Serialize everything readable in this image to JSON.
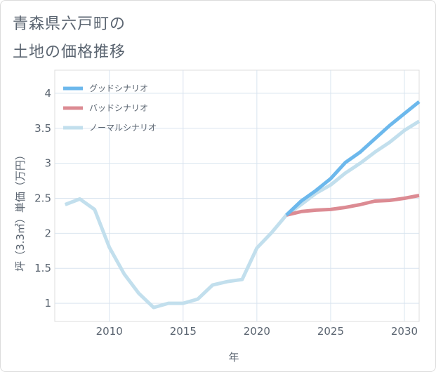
{
  "title_line1": "青森県六戸町の",
  "title_line2": "土地の価格推移",
  "chart_data": {
    "type": "line",
    "title": "青森県六戸町の土地の価格推移",
    "xlabel": "年",
    "ylabel": "坪（3.3㎡）単価（万円）",
    "xlim": [
      2006.3,
      2031
    ],
    "ylim": [
      0.74,
      4.33
    ],
    "x_ticks": [
      2010,
      2015,
      2020,
      2025,
      2030
    ],
    "y_ticks": [
      1,
      1.5,
      2,
      2.5,
      3,
      3.5,
      4
    ],
    "x_tick_labels": [
      "2010",
      "2015",
      "2020",
      "2025",
      "2030"
    ],
    "y_tick_labels": [
      "1",
      "1.5",
      "2",
      "2.5",
      "3",
      "3.5",
      "4"
    ],
    "grid": true,
    "legend_position": "top-left",
    "series": [
      {
        "name": "グッドシナリオ",
        "color": "#6cb8ec",
        "x": [
          2022,
          2023,
          2024,
          2025,
          2026,
          2027,
          2028,
          2029,
          2030,
          2031
        ],
        "y": [
          2.26,
          2.46,
          2.61,
          2.78,
          3.01,
          3.16,
          3.35,
          3.54,
          3.71,
          3.88
        ]
      },
      {
        "name": "バッドシナリオ",
        "color": "#dc8b93",
        "x": [
          2022,
          2023,
          2024,
          2025,
          2026,
          2027,
          2028,
          2029,
          2030,
          2031
        ],
        "y": [
          2.26,
          2.31,
          2.33,
          2.34,
          2.37,
          2.41,
          2.46,
          2.47,
          2.5,
          2.54
        ]
      },
      {
        "name": "ノーマルシナリオ",
        "color": "#c2dfed",
        "x": [
          2007,
          2008,
          2009,
          2010,
          2011,
          2012,
          2013,
          2014,
          2015,
          2016,
          2017,
          2018,
          2019,
          2020,
          2021,
          2022,
          2023,
          2024,
          2025,
          2026,
          2027,
          2028,
          2029,
          2030,
          2031
        ],
        "y": [
          2.41,
          2.49,
          2.34,
          1.8,
          1.42,
          1.14,
          0.94,
          1.0,
          1.0,
          1.06,
          1.26,
          1.31,
          1.34,
          1.79,
          2.01,
          2.26,
          2.41,
          2.57,
          2.69,
          2.86,
          3.0,
          3.16,
          3.3,
          3.47,
          3.6
        ]
      }
    ]
  }
}
